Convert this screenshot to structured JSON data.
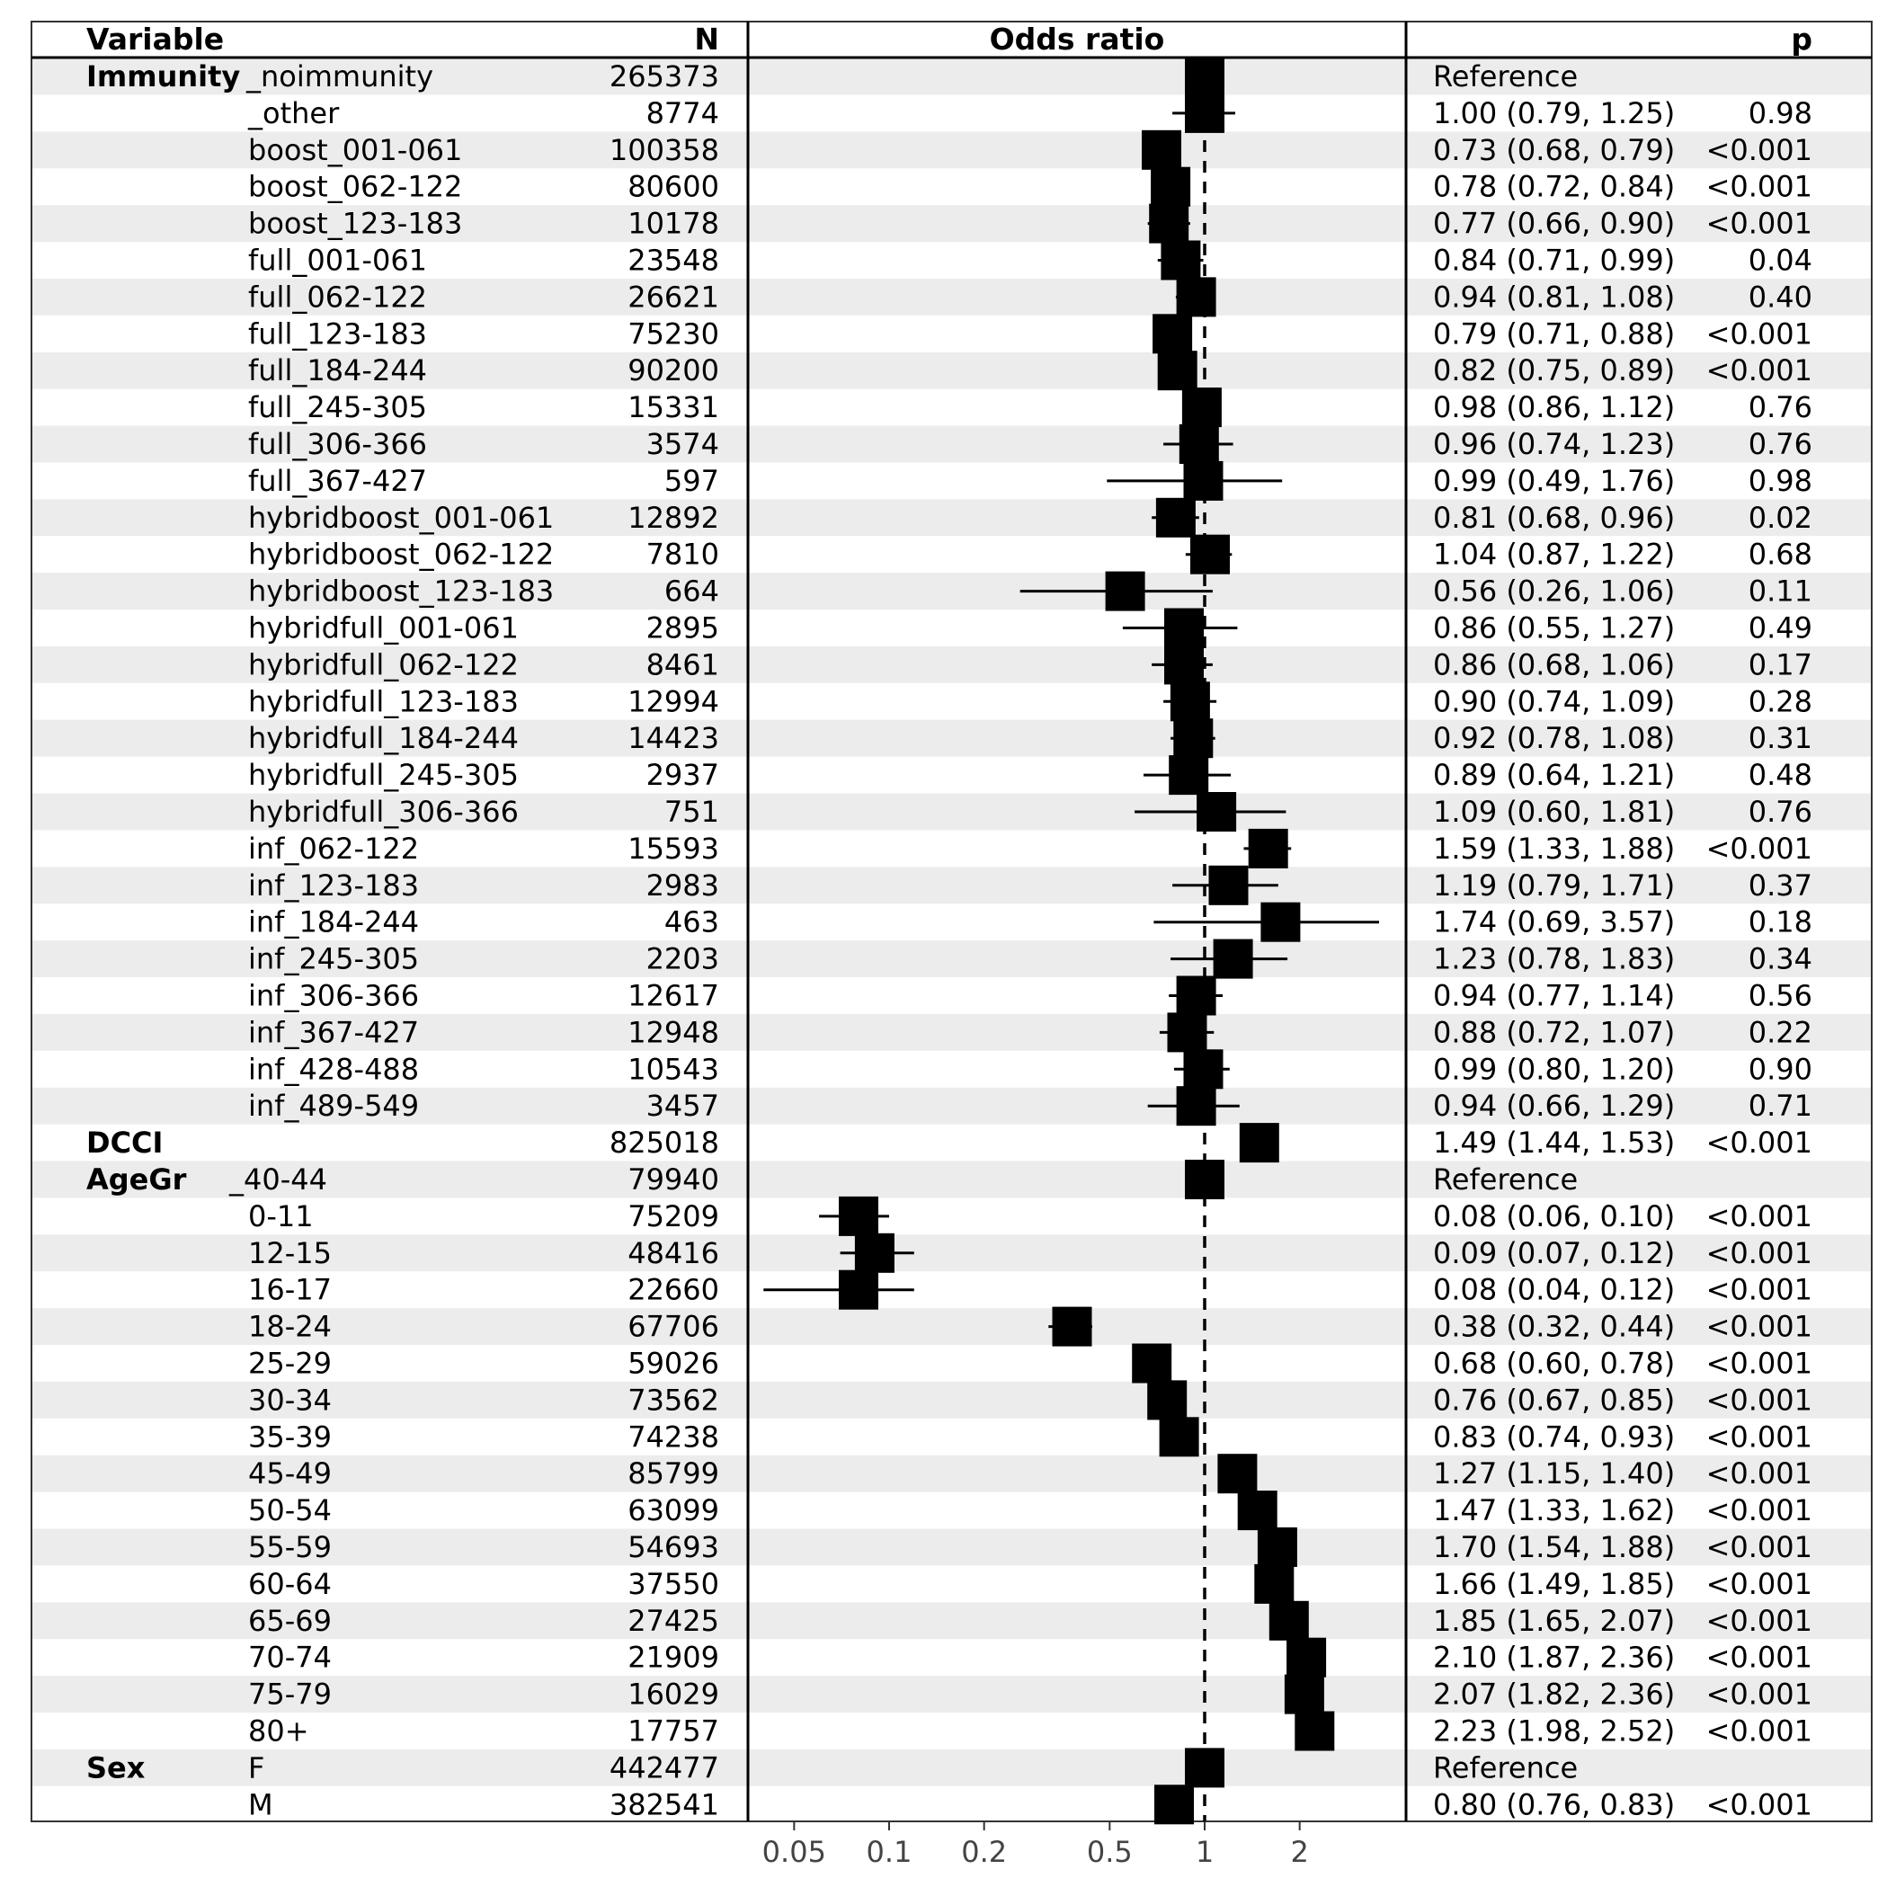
{
  "chart_data": {
    "type": "forest",
    "headers": {
      "variable": "Variable",
      "n": "N",
      "or": "Odds ratio",
      "p": "p"
    },
    "reference_line": 1,
    "x_scale": "log",
    "xlim": [
      0.037,
      4.1
    ],
    "x_ticks": [
      {
        "value": 0.05,
        "label": "0.05"
      },
      {
        "value": 0.1,
        "label": "0.1"
      },
      {
        "value": 0.2,
        "label": "0.2"
      },
      {
        "value": 0.5,
        "label": "0.5"
      },
      {
        "value": 1,
        "label": "1"
      },
      {
        "value": 2,
        "label": "2"
      }
    ],
    "rows": [
      {
        "variable": "Immunity",
        "level": "_noimmunity",
        "n": "265373",
        "est_text": "Reference",
        "p": "",
        "or": 1,
        "lo": null,
        "hi": null,
        "ref": true
      },
      {
        "variable": "",
        "level": "_other",
        "n": "8774",
        "est_text": "1.00 (0.79, 1.25)",
        "p": "0.98",
        "or": 1.0,
        "lo": 0.79,
        "hi": 1.25
      },
      {
        "variable": "",
        "level": "boost_001-061",
        "n": "100358",
        "est_text": "0.73 (0.68, 0.79)",
        "p": "<0.001",
        "or": 0.73,
        "lo": 0.68,
        "hi": 0.79
      },
      {
        "variable": "",
        "level": "boost_062-122",
        "n": "80600",
        "est_text": "0.78 (0.72, 0.84)",
        "p": "<0.001",
        "or": 0.78,
        "lo": 0.72,
        "hi": 0.84
      },
      {
        "variable": "",
        "level": "boost_123-183",
        "n": "10178",
        "est_text": "0.77 (0.66, 0.90)",
        "p": "<0.001",
        "or": 0.77,
        "lo": 0.66,
        "hi": 0.9
      },
      {
        "variable": "",
        "level": "full_001-061",
        "n": "23548",
        "est_text": "0.84 (0.71, 0.99)",
        "p": "0.04",
        "or": 0.84,
        "lo": 0.71,
        "hi": 0.99
      },
      {
        "variable": "",
        "level": "full_062-122",
        "n": "26621",
        "est_text": "0.94 (0.81, 1.08)",
        "p": "0.40",
        "or": 0.94,
        "lo": 0.81,
        "hi": 1.08
      },
      {
        "variable": "",
        "level": "full_123-183",
        "n": "75230",
        "est_text": "0.79 (0.71, 0.88)",
        "p": "<0.001",
        "or": 0.79,
        "lo": 0.71,
        "hi": 0.88
      },
      {
        "variable": "",
        "level": "full_184-244",
        "n": "90200",
        "est_text": "0.82 (0.75, 0.89)",
        "p": "<0.001",
        "or": 0.82,
        "lo": 0.75,
        "hi": 0.89
      },
      {
        "variable": "",
        "level": "full_245-305",
        "n": "15331",
        "est_text": "0.98 (0.86, 1.12)",
        "p": "0.76",
        "or": 0.98,
        "lo": 0.86,
        "hi": 1.12
      },
      {
        "variable": "",
        "level": "full_306-366",
        "n": "3574",
        "est_text": "0.96 (0.74, 1.23)",
        "p": "0.76",
        "or": 0.96,
        "lo": 0.74,
        "hi": 1.23
      },
      {
        "variable": "",
        "level": "full_367-427",
        "n": "597",
        "est_text": "0.99 (0.49, 1.76)",
        "p": "0.98",
        "or": 0.99,
        "lo": 0.49,
        "hi": 1.76
      },
      {
        "variable": "",
        "level": "hybridboost_001-061",
        "n": "12892",
        "est_text": "0.81 (0.68, 0.96)",
        "p": "0.02",
        "or": 0.81,
        "lo": 0.68,
        "hi": 0.96
      },
      {
        "variable": "",
        "level": "hybridboost_062-122",
        "n": "7810",
        "est_text": "1.04 (0.87, 1.22)",
        "p": "0.68",
        "or": 1.04,
        "lo": 0.87,
        "hi": 1.22
      },
      {
        "variable": "",
        "level": "hybridboost_123-183",
        "n": "664",
        "est_text": "0.56 (0.26, 1.06)",
        "p": "0.11",
        "or": 0.56,
        "lo": 0.26,
        "hi": 1.06
      },
      {
        "variable": "",
        "level": "hybridfull_001-061",
        "n": "2895",
        "est_text": "0.86 (0.55, 1.27)",
        "p": "0.49",
        "or": 0.86,
        "lo": 0.55,
        "hi": 1.27
      },
      {
        "variable": "",
        "level": "hybridfull_062-122",
        "n": "8461",
        "est_text": "0.86 (0.68, 1.06)",
        "p": "0.17",
        "or": 0.86,
        "lo": 0.68,
        "hi": 1.06
      },
      {
        "variable": "",
        "level": "hybridfull_123-183",
        "n": "12994",
        "est_text": "0.90 (0.74, 1.09)",
        "p": "0.28",
        "or": 0.9,
        "lo": 0.74,
        "hi": 1.09
      },
      {
        "variable": "",
        "level": "hybridfull_184-244",
        "n": "14423",
        "est_text": "0.92 (0.78, 1.08)",
        "p": "0.31",
        "or": 0.92,
        "lo": 0.78,
        "hi": 1.08
      },
      {
        "variable": "",
        "level": "hybridfull_245-305",
        "n": "2937",
        "est_text": "0.89 (0.64, 1.21)",
        "p": "0.48",
        "or": 0.89,
        "lo": 0.64,
        "hi": 1.21
      },
      {
        "variable": "",
        "level": "hybridfull_306-366",
        "n": "751",
        "est_text": "1.09 (0.60, 1.81)",
        "p": "0.76",
        "or": 1.09,
        "lo": 0.6,
        "hi": 1.81
      },
      {
        "variable": "",
        "level": "inf_062-122",
        "n": "15593",
        "est_text": "1.59 (1.33, 1.88)",
        "p": "<0.001",
        "or": 1.59,
        "lo": 1.33,
        "hi": 1.88
      },
      {
        "variable": "",
        "level": "inf_123-183",
        "n": "2983",
        "est_text": "1.19 (0.79, 1.71)",
        "p": "0.37",
        "or": 1.19,
        "lo": 0.79,
        "hi": 1.71
      },
      {
        "variable": "",
        "level": "inf_184-244",
        "n": "463",
        "est_text": "1.74 (0.69, 3.57)",
        "p": "0.18",
        "or": 1.74,
        "lo": 0.69,
        "hi": 3.57
      },
      {
        "variable": "",
        "level": "inf_245-305",
        "n": "2203",
        "est_text": "1.23 (0.78, 1.83)",
        "p": "0.34",
        "or": 1.23,
        "lo": 0.78,
        "hi": 1.83
      },
      {
        "variable": "",
        "level": "inf_306-366",
        "n": "12617",
        "est_text": "0.94 (0.77, 1.14)",
        "p": "0.56",
        "or": 0.94,
        "lo": 0.77,
        "hi": 1.14
      },
      {
        "variable": "",
        "level": "inf_367-427",
        "n": "12948",
        "est_text": "0.88 (0.72, 1.07)",
        "p": "0.22",
        "or": 0.88,
        "lo": 0.72,
        "hi": 1.07
      },
      {
        "variable": "",
        "level": "inf_428-488",
        "n": "10543",
        "est_text": "0.99 (0.80, 1.20)",
        "p": "0.90",
        "or": 0.99,
        "lo": 0.8,
        "hi": 1.2
      },
      {
        "variable": "",
        "level": "inf_489-549",
        "n": "3457",
        "est_text": "0.94 (0.66, 1.29)",
        "p": "0.71",
        "or": 0.94,
        "lo": 0.66,
        "hi": 1.29
      },
      {
        "variable": "DCCI",
        "level": "",
        "n": "825018",
        "est_text": "1.49 (1.44, 1.53)",
        "p": "<0.001",
        "or": 1.49,
        "lo": 1.44,
        "hi": 1.53
      },
      {
        "variable": "AgeGr",
        "level": "_40-44",
        "n": "79940",
        "est_text": "Reference",
        "p": "",
        "or": 1,
        "lo": null,
        "hi": null,
        "ref": true
      },
      {
        "variable": "",
        "level": "0-11",
        "n": "75209",
        "est_text": "0.08 (0.06, 0.10)",
        "p": "<0.001",
        "or": 0.08,
        "lo": 0.06,
        "hi": 0.1
      },
      {
        "variable": "",
        "level": "12-15",
        "n": "48416",
        "est_text": "0.09 (0.07, 0.12)",
        "p": "<0.001",
        "or": 0.09,
        "lo": 0.07,
        "hi": 0.12
      },
      {
        "variable": "",
        "level": "16-17",
        "n": "22660",
        "est_text": "0.08 (0.04, 0.12)",
        "p": "<0.001",
        "or": 0.08,
        "lo": 0.04,
        "hi": 0.12
      },
      {
        "variable": "",
        "level": "18-24",
        "n": "67706",
        "est_text": "0.38 (0.32, 0.44)",
        "p": "<0.001",
        "or": 0.38,
        "lo": 0.32,
        "hi": 0.44
      },
      {
        "variable": "",
        "level": "25-29",
        "n": "59026",
        "est_text": "0.68 (0.60, 0.78)",
        "p": "<0.001",
        "or": 0.68,
        "lo": 0.6,
        "hi": 0.78
      },
      {
        "variable": "",
        "level": "30-34",
        "n": "73562",
        "est_text": "0.76 (0.67, 0.85)",
        "p": "<0.001",
        "or": 0.76,
        "lo": 0.67,
        "hi": 0.85
      },
      {
        "variable": "",
        "level": "35-39",
        "n": "74238",
        "est_text": "0.83 (0.74, 0.93)",
        "p": "<0.001",
        "or": 0.83,
        "lo": 0.74,
        "hi": 0.93
      },
      {
        "variable": "",
        "level": "45-49",
        "n": "85799",
        "est_text": "1.27 (1.15, 1.40)",
        "p": "<0.001",
        "or": 1.27,
        "lo": 1.15,
        "hi": 1.4
      },
      {
        "variable": "",
        "level": "50-54",
        "n": "63099",
        "est_text": "1.47 (1.33, 1.62)",
        "p": "<0.001",
        "or": 1.47,
        "lo": 1.33,
        "hi": 1.62
      },
      {
        "variable": "",
        "level": "55-59",
        "n": "54693",
        "est_text": "1.70 (1.54, 1.88)",
        "p": "<0.001",
        "or": 1.7,
        "lo": 1.54,
        "hi": 1.88
      },
      {
        "variable": "",
        "level": "60-64",
        "n": "37550",
        "est_text": "1.66 (1.49, 1.85)",
        "p": "<0.001",
        "or": 1.66,
        "lo": 1.49,
        "hi": 1.85
      },
      {
        "variable": "",
        "level": "65-69",
        "n": "27425",
        "est_text": "1.85 (1.65, 2.07)",
        "p": "<0.001",
        "or": 1.85,
        "lo": 1.65,
        "hi": 2.07
      },
      {
        "variable": "",
        "level": "70-74",
        "n": "21909",
        "est_text": "2.10 (1.87, 2.36)",
        "p": "<0.001",
        "or": 2.1,
        "lo": 1.87,
        "hi": 2.36
      },
      {
        "variable": "",
        "level": "75-79",
        "n": "16029",
        "est_text": "2.07 (1.82, 2.36)",
        "p": "<0.001",
        "or": 2.07,
        "lo": 1.82,
        "hi": 2.36
      },
      {
        "variable": "",
        "level": "80+",
        "n": "17757",
        "est_text": "2.23 (1.98, 2.52)",
        "p": "<0.001",
        "or": 2.23,
        "lo": 1.98,
        "hi": 2.52
      },
      {
        "variable": "Sex",
        "level": "F",
        "n": "442477",
        "est_text": "Reference",
        "p": "",
        "or": 1,
        "lo": null,
        "hi": null,
        "ref": true
      },
      {
        "variable": "",
        "level": "M",
        "n": "382541",
        "est_text": "0.80 (0.76, 0.83)",
        "p": "<0.001",
        "or": 0.8,
        "lo": 0.76,
        "hi": 0.83
      }
    ]
  }
}
